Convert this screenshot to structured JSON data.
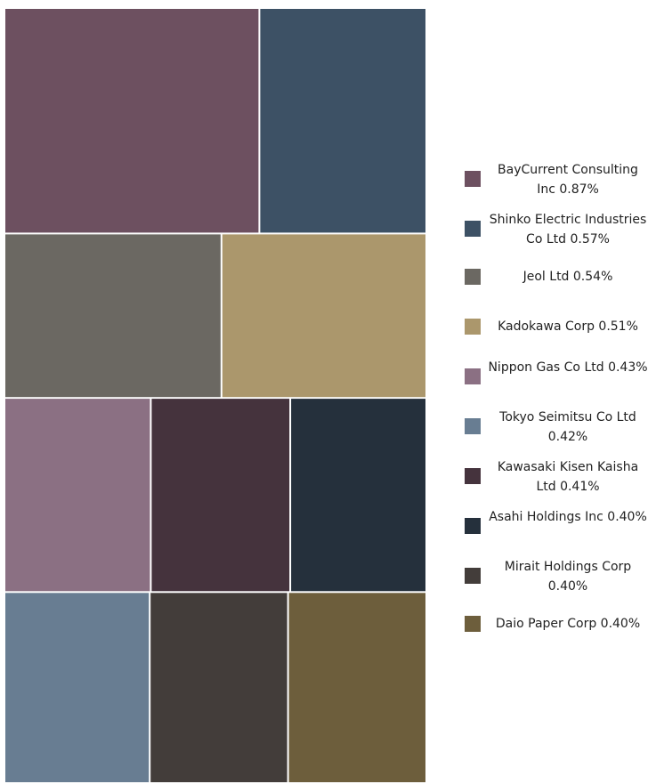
{
  "chart_data": {
    "type": "treemap",
    "items": [
      {
        "name": "BayCurrent Consulting Inc",
        "value": 0.87,
        "label": "BayCurrent Consulting Inc 0.87%",
        "color": "#6d5060"
      },
      {
        "name": "Shinko Electric Industries Co Ltd",
        "value": 0.57,
        "label": "Shinko Electric Industries Co Ltd 0.57%",
        "color": "#3d5165"
      },
      {
        "name": "Jeol Ltd",
        "value": 0.54,
        "label": "Jeol Ltd 0.54%",
        "color": "#6b6862"
      },
      {
        "name": "Kadokawa Corp",
        "value": 0.51,
        "label": "Kadokawa Corp 0.51%",
        "color": "#ab976c"
      },
      {
        "name": "Nippon Gas Co Ltd",
        "value": 0.43,
        "label": "Nippon Gas Co Ltd 0.43%",
        "color": "#8b7083"
      },
      {
        "name": "Tokyo Seimitsu Co Ltd",
        "value": 0.42,
        "label": "Tokyo Seimitsu Co Ltd 0.42%",
        "color": "#687d92"
      },
      {
        "name": "Kawasaki Kisen Kaisha Ltd",
        "value": 0.41,
        "label": "Kawasaki Kisen Kaisha Ltd 0.41%",
        "color": "#45333d"
      },
      {
        "name": "Asahi Holdings Inc",
        "value": 0.4,
        "label": "Asahi Holdings Inc 0.40%",
        "color": "#25303c"
      },
      {
        "name": "Mirait Holdings Corp",
        "value": 0.4,
        "label": "Mirait Holdings Corp 0.40%",
        "color": "#433d3a"
      },
      {
        "name": "Daio Paper Corp",
        "value": 0.4,
        "label": "Daio Paper Corp 0.40%",
        "color": "#6d5e3c"
      }
    ],
    "legend_position": "right"
  }
}
